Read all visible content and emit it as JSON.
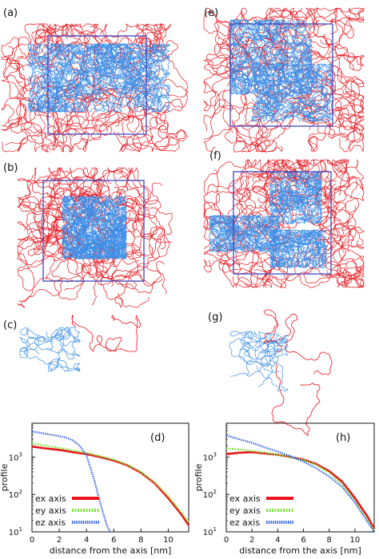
{
  "panels": {
    "a": "(a)",
    "b": "(b)",
    "c": "(c)",
    "d": "(d)",
    "e": "(e)",
    "f": "(f)",
    "g": "(g)",
    "h": "(h)"
  },
  "colors": {
    "ex": "#e8141c",
    "ey": "#7ee53a",
    "ez": "#3a66e0",
    "tail": "#e8141c",
    "core": "#3b8fe8",
    "box": "#3b49c4"
  },
  "chart_data": [
    {
      "type": "line",
      "panel": "(d)",
      "xlabel": "distance from the axis [nm]",
      "ylabel": "profile",
      "xlim": [
        0,
        11.5
      ],
      "ylim": [
        10,
        8000
      ],
      "yscale": "log",
      "xticks": [
        0,
        2,
        4,
        6,
        8,
        10
      ],
      "yticks": [
        {
          "v": 10,
          "base": "10",
          "exp": "1"
        },
        {
          "v": 100,
          "base": "10",
          "exp": "2"
        },
        {
          "v": 1000,
          "base": "10",
          "exp": "3"
        }
      ],
      "legend_position": "bottom-left",
      "series": [
        {
          "name": "ex axis",
          "color": "#e8141c",
          "x": [
            0,
            1,
            2,
            3,
            4,
            5,
            6,
            7,
            8,
            9,
            10,
            11,
            11.5
          ],
          "y": [
            1900,
            1700,
            1550,
            1350,
            1200,
            1000,
            800,
            600,
            380,
            200,
            80,
            28,
            15
          ]
        },
        {
          "name": "ey axis",
          "color": "#7ee53a",
          "x": [
            0,
            1,
            2,
            3,
            4,
            5,
            6,
            7,
            8,
            9,
            10,
            11,
            11.5
          ],
          "y": [
            2300,
            2000,
            1750,
            1500,
            1300,
            1050,
            850,
            620,
            400,
            210,
            90,
            32,
            18
          ]
        },
        {
          "name": "ez axis",
          "color": "#3a66e0",
          "x": [
            0,
            0.5,
            1,
            1.5,
            2,
            2.5,
            3,
            3.5,
            4,
            4.5,
            5,
            5.5,
            5.8
          ],
          "y": [
            4800,
            4500,
            4200,
            3900,
            3600,
            3300,
            2800,
            2000,
            1100,
            300,
            60,
            15,
            9
          ]
        }
      ]
    },
    {
      "type": "line",
      "panel": "(h)",
      "xlabel": "distance from the axis [nm]",
      "ylabel": "profile",
      "xlim": [
        0,
        11.5
      ],
      "ylim": [
        10,
        8000
      ],
      "yscale": "log",
      "xticks": [
        0,
        2,
        4,
        6,
        8,
        10
      ],
      "yticks": [
        {
          "v": 10,
          "base": "10",
          "exp": "1"
        },
        {
          "v": 100,
          "base": "10",
          "exp": "2"
        },
        {
          "v": 1000,
          "base": "10",
          "exp": "3"
        }
      ],
      "legend_position": "bottom-left",
      "series": [
        {
          "name": "ex axis",
          "color": "#e8141c",
          "x": [
            0,
            1,
            2,
            3,
            4,
            5,
            6,
            7,
            8,
            9,
            10,
            11,
            11.5
          ],
          "y": [
            1200,
            1300,
            1350,
            1250,
            1150,
            1000,
            850,
            650,
            420,
            220,
            80,
            25,
            12
          ]
        },
        {
          "name": "ey axis",
          "color": "#7ee53a",
          "x": [
            0,
            1,
            2,
            3,
            4,
            5,
            6,
            7,
            8,
            9,
            10,
            11,
            11.5
          ],
          "y": [
            1700,
            1600,
            1450,
            1300,
            1150,
            1000,
            820,
            620,
            380,
            190,
            65,
            20,
            11
          ]
        },
        {
          "name": "ez axis",
          "color": "#3a66e0",
          "x": [
            0,
            1,
            2,
            3,
            4,
            5,
            6,
            7,
            8,
            9,
            10,
            11,
            11.5
          ],
          "y": [
            3800,
            3000,
            2400,
            1800,
            1400,
            1050,
            750,
            500,
            300,
            160,
            60,
            18,
            10
          ]
        }
      ]
    }
  ]
}
